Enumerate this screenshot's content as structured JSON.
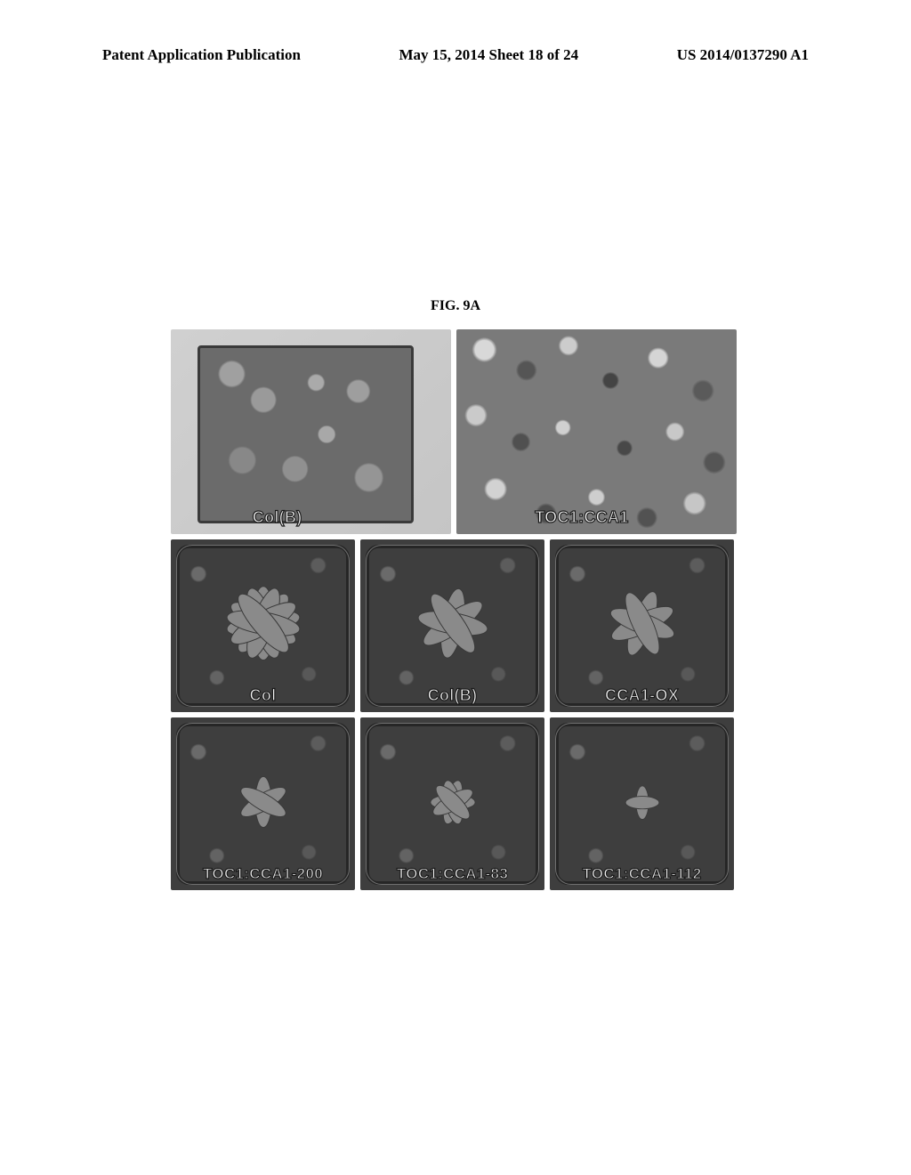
{
  "header": {
    "left": "Patent Application Publication",
    "center": "May 15, 2014  Sheet 18 of 24",
    "right": "US 2014/0137290 A1"
  },
  "figure": {
    "label": "FIG. 9A",
    "top_row": [
      {
        "caption": "Col(B)"
      },
      {
        "caption": "TOC1:CCA1"
      }
    ],
    "mid_row": [
      {
        "caption": "Col",
        "plant_scale": 1.0
      },
      {
        "caption": "Col(B)",
        "plant_scale": 0.95
      },
      {
        "caption": "CCA1-OX",
        "plant_scale": 0.92
      }
    ],
    "bot_row": [
      {
        "caption": "TOC1:CCA1-200",
        "plant_scale": 0.7
      },
      {
        "caption": "TOC1:CCA1-83",
        "plant_scale": 0.6
      },
      {
        "caption": "TOC1:CCA1-112",
        "plant_scale": 0.45
      }
    ],
    "colors": {
      "page_bg": "#ffffff",
      "text": "#000000",
      "caption_fill": "#f4f4f4",
      "caption_stroke": "#1a1a1a",
      "leaf_fill": "#8a8a8a",
      "leaf_stroke": "#3a3a3a"
    },
    "fontsizes": {
      "header": 17,
      "figure_label": 16,
      "caption_large": 18,
      "caption_small": 17
    }
  }
}
